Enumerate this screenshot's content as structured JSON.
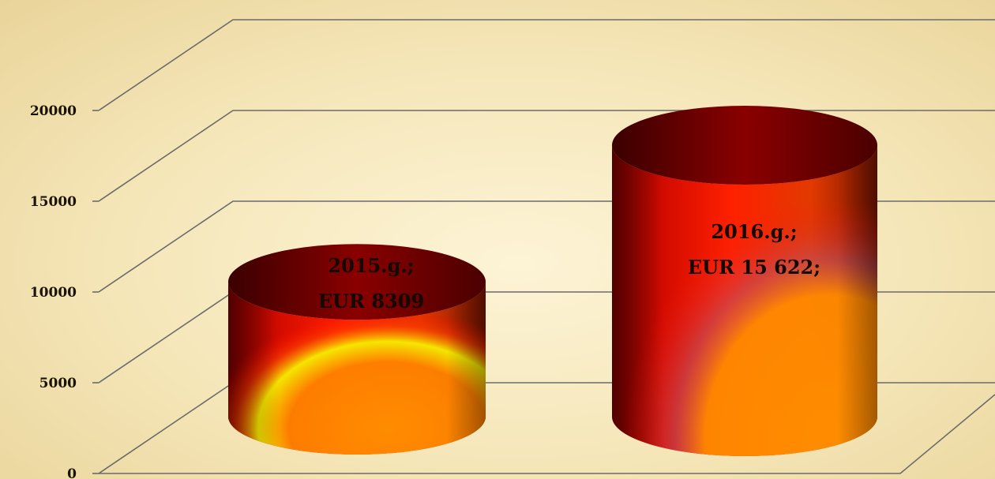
{
  "chart_data": {
    "type": "bar",
    "style": "3d-cylinder",
    "categories": [
      "2015.g.",
      "2016.g."
    ],
    "series": [
      {
        "values": [
          8309,
          15622
        ]
      }
    ],
    "data_labels": [
      [
        "2015.g.;",
        "EUR 8309"
      ],
      [
        "2016.g.;",
        "EUR  15 622;"
      ]
    ],
    "yticks": [
      "0",
      "5000",
      "10000",
      "15000",
      "20000"
    ],
    "ylim": [
      0,
      20000
    ],
    "grid": true,
    "legend": "none",
    "colors": {
      "bar_dark": "#5a0000",
      "bar_red": "#ff1a00",
      "bar_orange": "#ff8a00",
      "bar_yellow": "#f4f000",
      "grid": "#6b6b6b"
    }
  }
}
